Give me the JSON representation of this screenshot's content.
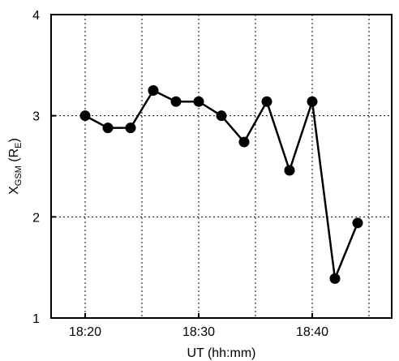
{
  "chart_data": {
    "type": "line",
    "x_unit": "minute",
    "x": [
      "18:20",
      "18:22",
      "18:24",
      "18:26",
      "18:28",
      "18:30",
      "18:32",
      "18:34",
      "18:36",
      "18:38",
      "18:40",
      "18:42",
      "18:44"
    ],
    "series": [
      {
        "values": [
          3.0,
          2.88,
          2.88,
          3.25,
          3.14,
          3.14,
          3.0,
          2.74,
          3.14,
          2.46,
          3.14,
          1.39,
          1.94
        ]
      }
    ],
    "xlim": [
      "18:17",
      "18:47"
    ],
    "ylim": [
      1,
      4
    ],
    "xticks": [
      "18:20",
      "18:30",
      "18:40"
    ],
    "yticks": [
      1,
      2,
      3,
      4
    ],
    "xlabel": "UT (hh:mm)",
    "ylabel": {
      "main": "X",
      "sub": "GSM",
      "unit": " (R",
      "unit_sub": "E",
      "close": ")"
    },
    "grid": true,
    "grid_style": "dotted",
    "marker": "filled-circle",
    "color": "#000000"
  }
}
